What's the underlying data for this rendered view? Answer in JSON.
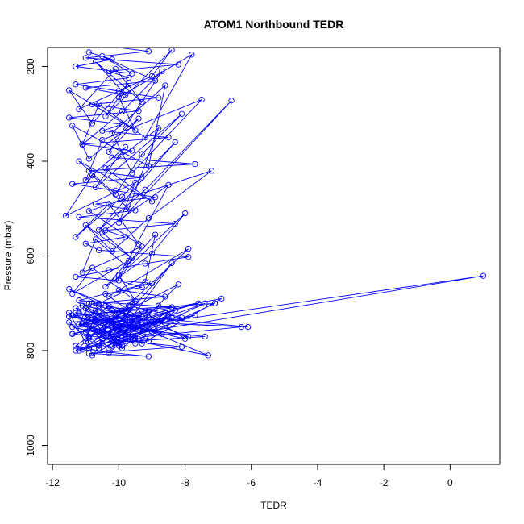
{
  "chart_data": {
    "type": "line",
    "title": "ATOM1 Northbound TEDR",
    "xlabel": "TEDR",
    "ylabel": "Pressure (mbar)",
    "xlim": [
      -12.15,
      1.5
    ],
    "ylim": [
      1040,
      160
    ],
    "y_reversed": true,
    "x_ticks": [
      -12,
      -10,
      -8,
      -6,
      -4,
      -2,
      0
    ],
    "x_tick_labels": [
      "-12",
      "-10",
      "-8",
      "-6",
      "-4",
      "-2",
      "0"
    ],
    "y_ticks": [
      200,
      400,
      600,
      800,
      1000
    ],
    "y_tick_labels": [
      "200",
      "400",
      "600",
      "800",
      "1000"
    ],
    "grid": false,
    "legend": "none",
    "line_color": "#0000ff",
    "marker": "open-circle",
    "series": [
      {
        "x": [
          -10.9,
          -10.2,
          -11.3,
          -9.6,
          -10.5,
          -8.9,
          -11.0,
          -9.8,
          -10.7,
          -9.3,
          -10.1,
          -11.2,
          -9.0,
          -8.4,
          -10.4,
          -9.7,
          -10.8,
          -11.5,
          -9.5,
          -10.0,
          -7.8,
          -9.2,
          -10.6,
          -11.1,
          -9.9,
          -8.7,
          -10.3,
          -9.4,
          -10.9,
          -11.4,
          -9.1,
          -8.6,
          -10.2,
          -9.6,
          -7.5,
          -10.5,
          -11.0,
          -9.8,
          -10.7,
          -8.1,
          -9.3,
          -10.1,
          -11.2,
          -9.0,
          -10.4,
          -8.8,
          -9.7,
          -10.8,
          -11.6,
          -9.5,
          -10.0,
          -6.6,
          -9.2,
          -10.6,
          -8.3,
          -9.9,
          -11.3,
          -10.3,
          -9.4,
          -10.9,
          -7.2,
          -9.1,
          -10.2,
          -11.0,
          -9.6,
          -10.5,
          -8.5,
          -9.8,
          -10.7,
          -11.1,
          -9.3,
          -10.1,
          -8.0,
          -9.0,
          -10.4,
          -9.7,
          -11.4,
          -10.8,
          -9.5,
          -10.0,
          -8.9,
          -9.2,
          -10.6,
          -11.5,
          -9.9,
          -7.9,
          -10.3,
          -9.4,
          -10.9,
          -11.2,
          -9.1,
          -10.2,
          -8.4,
          -9.6,
          -10.5,
          1.0,
          -9.2,
          -10.6,
          -11.0,
          -8.2,
          -9.8,
          -10.3,
          -11.3,
          -9.5,
          -10.8,
          -8.6,
          -9.9,
          -11.1,
          -10.0,
          -9.4,
          -7.6,
          -10.7,
          -11.4,
          -9.7,
          -10.2,
          -8.8,
          -9.1,
          -10.9,
          -11.5,
          -9.6,
          -10.4,
          -6.9,
          -9.3,
          -10.1,
          -11.2,
          -8.5,
          -9.8,
          -10.6,
          -11.0,
          -9.0,
          -7.4,
          -10.3,
          -11.3,
          -9.5,
          -10.8,
          -6.3,
          -9.2,
          -10.0,
          -11.1,
          -8.1,
          -9.7,
          -10.5,
          -11.4,
          -9.4,
          -7.1,
          -10.2,
          -11.0,
          -9.9,
          -10.7,
          -6.1,
          -9.1,
          -10.4,
          -11.2,
          -8.7,
          -9.6,
          -10.1,
          -11.3,
          -9.3,
          -7.7,
          -10.6,
          -11.5,
          -9.8,
          -10.9,
          -8.3,
          -9.0,
          -10.3,
          -11.0,
          -9.5,
          -10.8,
          -8.0,
          -9.2,
          -10.0,
          -11.1,
          -9.7,
          -7.3,
          -10.5,
          -11.4,
          -9.4,
          -10.2,
          -8.6,
          -9.9,
          -10.7,
          -11.2,
          -9.1,
          -10.4,
          -7.9,
          -9.6,
          -10.1,
          -11.3,
          -9.3,
          -10.6,
          -8.4,
          -9.8,
          -10.9,
          -11.0,
          -9.5,
          -10.3
        ],
        "y": [
          170,
          185,
          200,
          215,
          178,
          230,
          245,
          260,
          190,
          275,
          205,
          290,
          220,
          165,
          305,
          235,
          320,
          250,
          335,
          265,
          175,
          350,
          280,
          365,
          295,
          210,
          380,
          310,
          395,
          325,
          410,
          240,
          340,
          425,
          270,
          355,
          440,
          370,
          455,
          300,
          385,
          470,
          400,
          485,
          415,
          330,
          500,
          430,
          515,
          445,
          530,
          272,
          460,
          545,
          360,
          475,
          560,
          490,
          575,
          505,
          420,
          520,
          590,
          535,
          605,
          550,
          450,
          620,
          565,
          635,
          580,
          650,
          510,
          595,
          665,
          610,
          680,
          625,
          695,
          640,
          555,
          655,
          700,
          670,
          715,
          585,
          685,
          730,
          700,
          745,
          715,
          760,
          615,
          730,
          775,
          642,
          745,
          790,
          760,
          660,
          775,
          805,
          790,
          700,
          810,
          720,
          795,
          705,
          720,
          735,
          700,
          750,
          765,
          740,
          780,
          705,
          755,
          795,
          720,
          770,
          735,
          690,
          785,
          750,
          800,
          725,
          765,
          705,
          780,
          740,
          700,
          795,
          720,
          755,
          735,
          750,
          770,
          790,
          745,
          730,
          705,
          760,
          725,
          775,
          700,
          715,
          745,
          790,
          735,
          750,
          730,
          740,
          720,
          765,
          700,
          780,
          710,
          750,
          725,
          795,
          740,
          730,
          770,
          715,
          760,
          705,
          745,
          785,
          730,
          775,
          720,
          755,
          700,
          740,
          810,
          765,
          750,
          725,
          790,
          735,
          760,
          715,
          745,
          780,
          705,
          770,
          750,
          725,
          800,
          740,
          765,
          730,
          755,
          795,
          710,
          775,
          745
        ],
        "x_b": [
          -10.6,
          -9.1,
          -11.0,
          -8.2,
          -10.3,
          -9.7,
          -11.3,
          -10.0,
          -8.8,
          -10.8,
          -9.4,
          -11.5,
          -9.9,
          -10.5,
          -8.5,
          -11.1,
          -9.6,
          -10.2,
          -7.7,
          -10.9,
          -9.3,
          -11.4,
          -10.1,
          -8.9,
          -10.7,
          -9.5,
          -11.2,
          -8.3,
          -10.4,
          -9.8,
          -11.0,
          -10.6,
          -7.9,
          -9.2,
          -10.3,
          -11.3,
          -9.0,
          -10.0,
          -8.6,
          -10.8,
          -9.7,
          -11.5,
          -10.2,
          -9.4,
          -7.4,
          -10.5,
          -11.1,
          -9.1,
          -10.9,
          -8.1,
          -9.9,
          -11.4,
          -10.1,
          -9.6,
          -10.7,
          -8.4,
          -11.2,
          -10.4,
          -9.3,
          -10.0
        ],
        "y_b": [
          155,
          168,
          182,
          196,
          210,
          224,
          238,
          252,
          266,
          280,
          294,
          308,
          322,
          336,
          350,
          364,
          378,
          392,
          406,
          420,
          434,
          448,
          462,
          476,
          490,
          504,
          518,
          532,
          546,
          560,
          574,
          588,
          602,
          616,
          630,
          644,
          658,
          672,
          686,
          700,
          714,
          728,
          742,
          756,
          770,
          784,
          798,
          812,
          806,
          792,
          778,
          764,
          750,
          736,
          722,
          708,
          694,
          680,
          666,
          652
        ]
      }
    ]
  }
}
